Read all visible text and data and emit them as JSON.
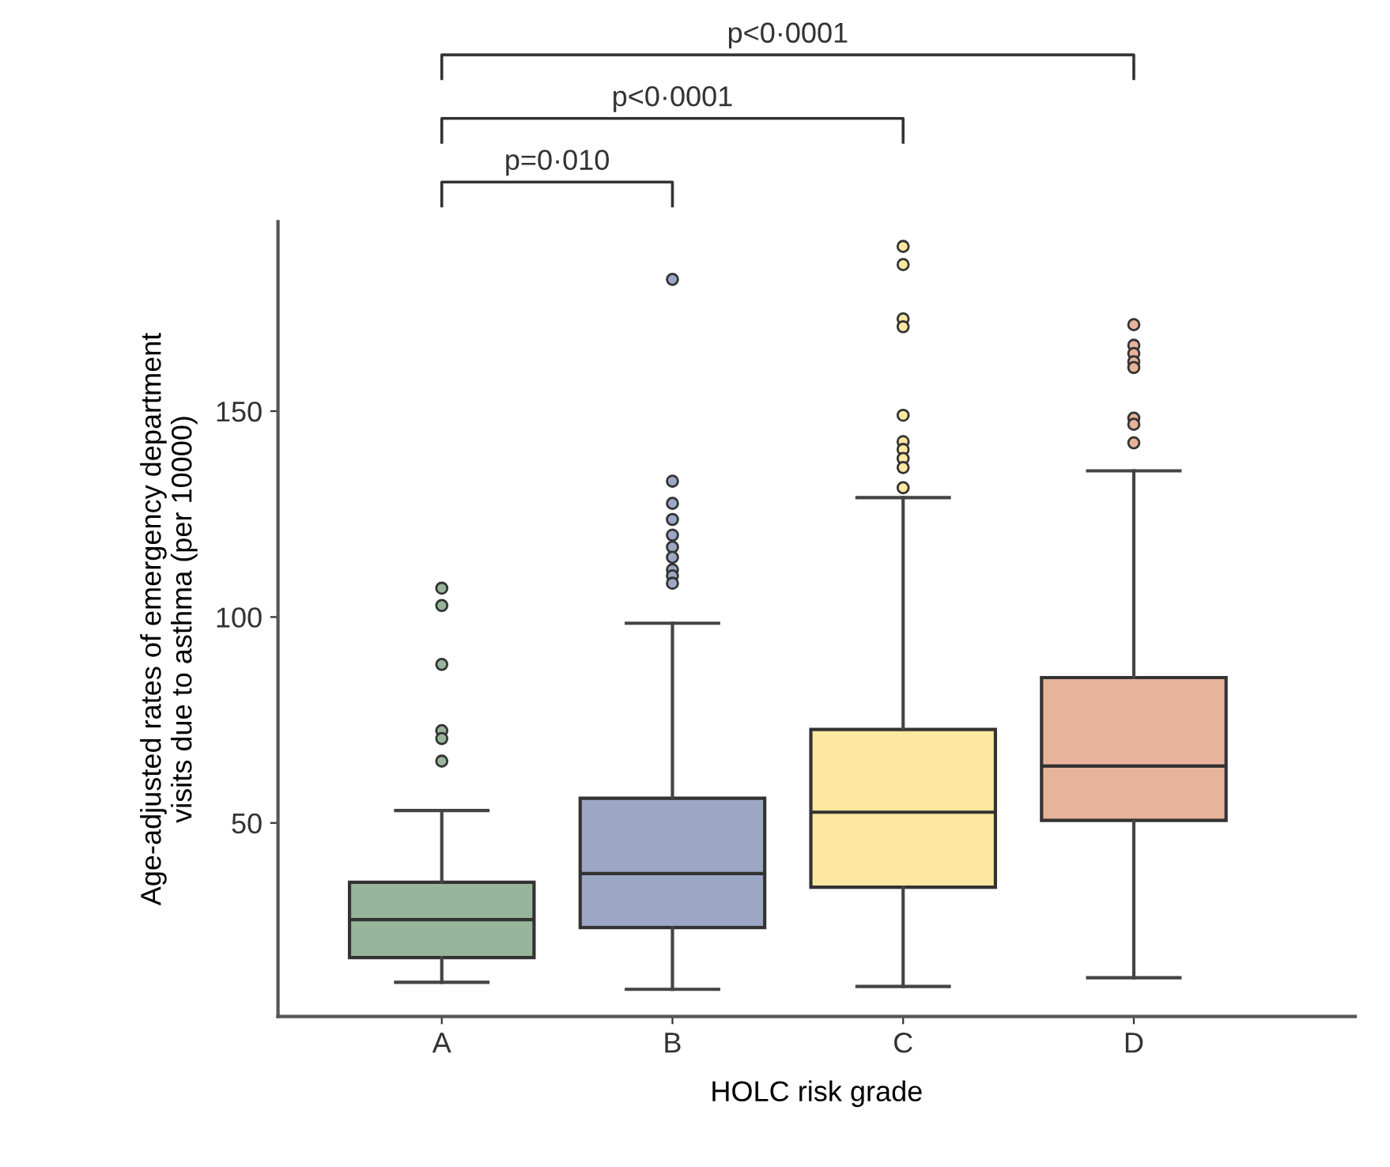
{
  "chart_data": {
    "type": "box",
    "xlabel": "HOLC risk grade",
    "ylabel": "Age-adjusted rates of emergency department\nvisits due to asthma (per 10000)",
    "categories": [
      "A",
      "B",
      "C",
      "D"
    ],
    "colors": [
      "#97b59b",
      "#9ba7c4",
      "#fce8a0",
      "#e7b39a"
    ],
    "boxes": [
      {
        "low": 11.3,
        "q1": 17.3,
        "median": 26.5,
        "q3": 35.6,
        "high": 53.0,
        "outliers": [
          107,
          102.8,
          88.5,
          72.4,
          70.5,
          65
        ]
      },
      {
        "low": 9.6,
        "q1": 24.6,
        "median": 37.7,
        "q3": 56,
        "high": 98.5,
        "outliers": [
          182,
          133,
          127.6,
          123.7,
          119.9,
          117,
          114.5,
          111.5,
          110,
          108.2
        ]
      },
      {
        "low": 10.3,
        "q1": 34.4,
        "median": 52.6,
        "q3": 72.7,
        "high": 129,
        "outliers": [
          190,
          185.6,
          172.4,
          170.5,
          149,
          142.6,
          140.7,
          138.5,
          136.3,
          131.4
        ]
      },
      {
        "low": 12.4,
        "q1": 50.6,
        "median": 63.8,
        "q3": 85.3,
        "high": 135.5,
        "outliers": [
          171,
          166,
          164,
          162,
          160.6,
          148.3,
          146.8,
          142.3
        ]
      }
    ],
    "annotations": [
      "p=0·010",
      "p<0·0001",
      "p<0·0001"
    ],
    "ylim": [
      3,
      196
    ],
    "yticks": [
      50,
      100,
      150
    ],
    "grid": false
  }
}
